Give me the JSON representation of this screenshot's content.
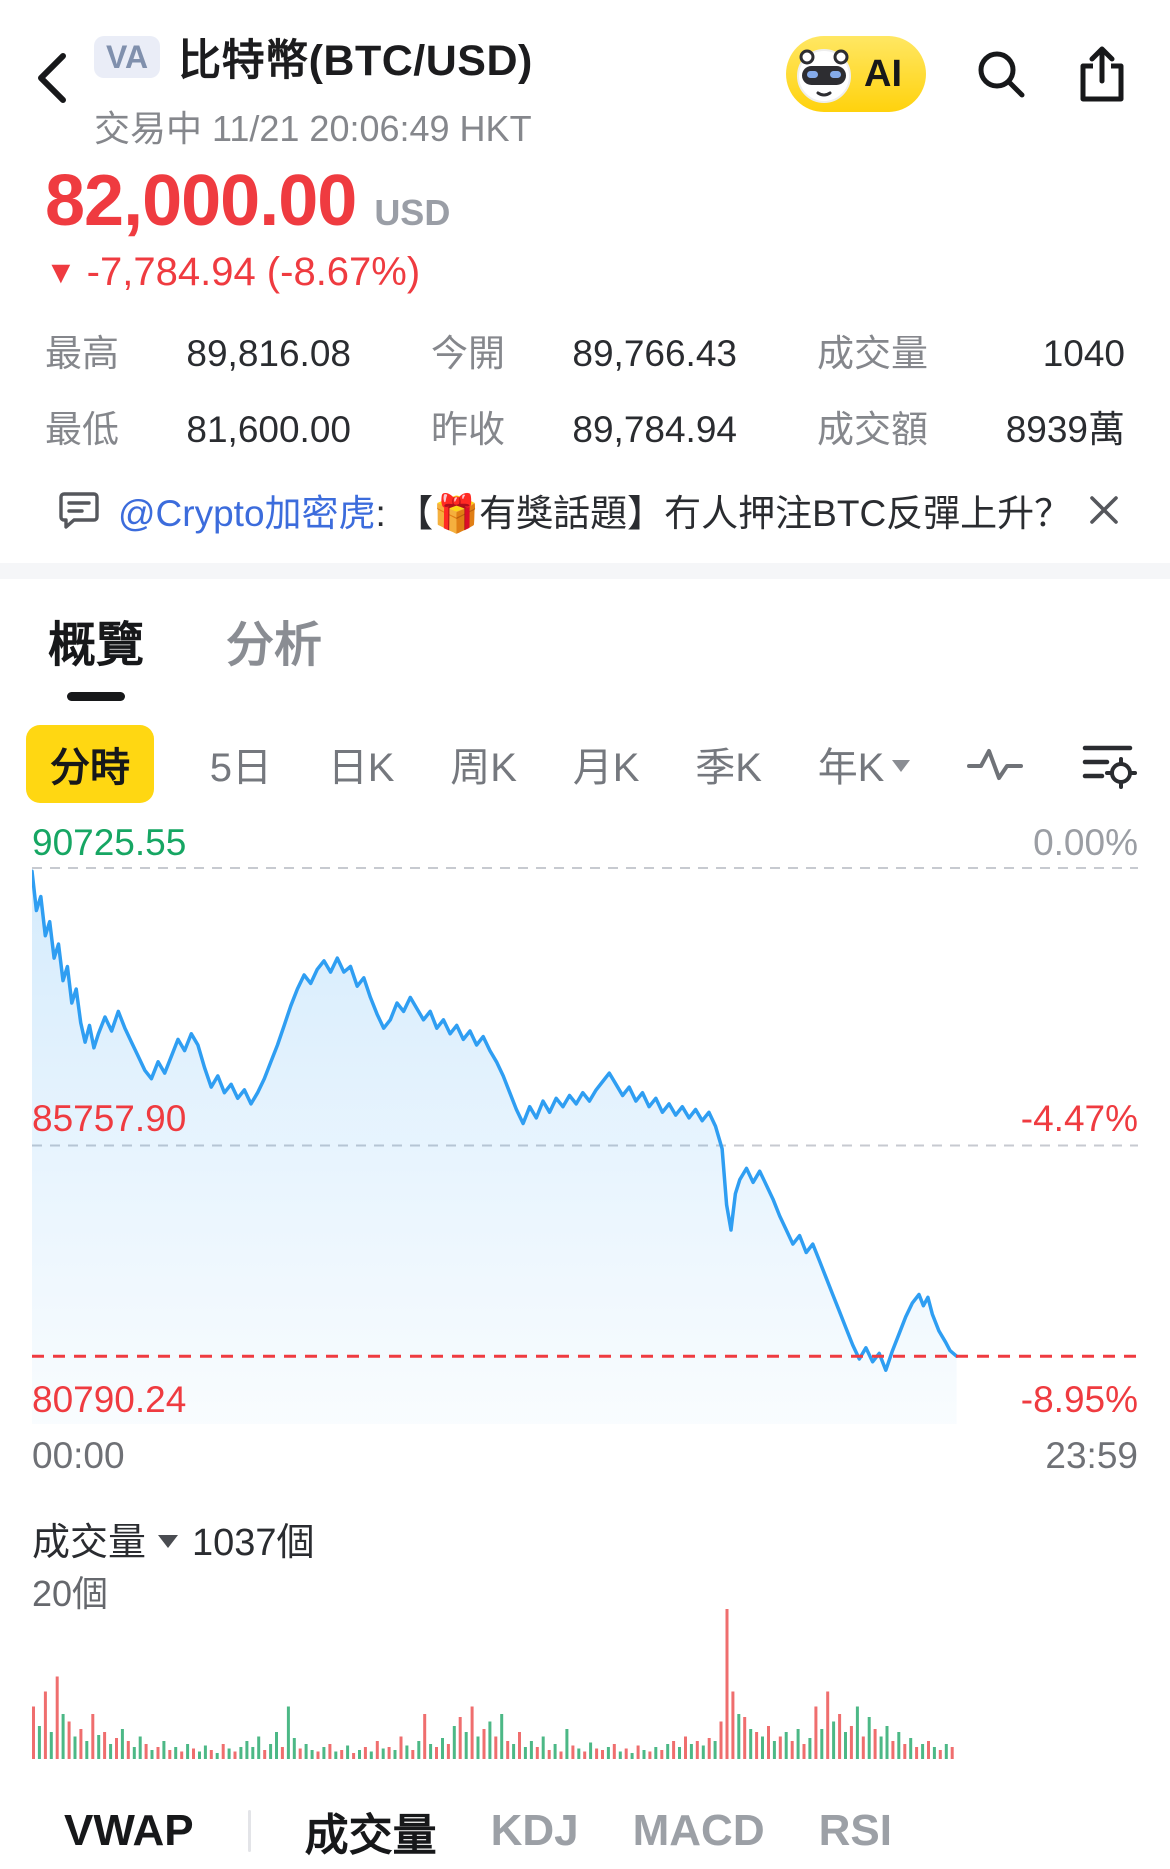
{
  "colors": {
    "down_red": "#ef3b40",
    "up_green": "#16a663",
    "line_blue": "#2f9ef2",
    "accent_yellow": "#ffd712",
    "link_blue": "#3c6cdc",
    "vol_red": "#ef6e6e",
    "vol_green": "#4cb886"
  },
  "header": {
    "badge": "VA",
    "title": "比特幣(BTC/USD)",
    "status": "交易中 11/21 20:06:49 HKT",
    "ai_label": "AI"
  },
  "quote": {
    "price": "82,000.00",
    "currency": "USD",
    "change_arrow": "▼",
    "change": "-7,784.94 (-8.67%)",
    "stats": [
      {
        "label": "最高",
        "value": "89,816.08"
      },
      {
        "label": "今開",
        "value": "89,766.43"
      },
      {
        "label": "成交量",
        "value": "1040"
      },
      {
        "label": "最低",
        "value": "81,600.00"
      },
      {
        "label": "昨收",
        "value": "89,784.94"
      },
      {
        "label": "成交額",
        "value": "8939萬"
      }
    ]
  },
  "banner": {
    "handle": "@Crypto加密虎",
    "message": ": 【🎁有獎話題】冇人押注BTC反彈上升？ ..."
  },
  "tabs": {
    "items": [
      {
        "label": "概覽",
        "active": true
      },
      {
        "label": "分析",
        "active": false
      }
    ]
  },
  "periods": {
    "active": "分時",
    "items": [
      "分時",
      "5日",
      "日K",
      "周K",
      "月K",
      "季K",
      "年K"
    ]
  },
  "chart_data": {
    "type": "line",
    "title": "BTC/USD intraday (分時)",
    "x_axis": {
      "start": "00:00",
      "end": "23:59"
    },
    "levels": {
      "top": {
        "price": 90725.55,
        "label": "90725.55",
        "pct": "0.00%"
      },
      "mid": {
        "price": 85757.9,
        "label": "85757.90",
        "pct": "-4.47%"
      },
      "bottom": {
        "price": 80790.24,
        "label": "80790.24",
        "pct": "-8.95%"
      },
      "last_price": 82000
    },
    "points": [
      [
        0.0,
        90650
      ],
      [
        0.004,
        89950
      ],
      [
        0.008,
        90200
      ],
      [
        0.012,
        89500
      ],
      [
        0.016,
        89750
      ],
      [
        0.02,
        89100
      ],
      [
        0.024,
        89350
      ],
      [
        0.028,
        88700
      ],
      [
        0.032,
        88950
      ],
      [
        0.036,
        88300
      ],
      [
        0.04,
        88550
      ],
      [
        0.044,
        87950
      ],
      [
        0.048,
        87600
      ],
      [
        0.052,
        87900
      ],
      [
        0.056,
        87500
      ],
      [
        0.06,
        87750
      ],
      [
        0.066,
        88050
      ],
      [
        0.072,
        87800
      ],
      [
        0.078,
        88150
      ],
      [
        0.084,
        87850
      ],
      [
        0.09,
        87600
      ],
      [
        0.096,
        87350
      ],
      [
        0.102,
        87100
      ],
      [
        0.108,
        86950
      ],
      [
        0.114,
        87250
      ],
      [
        0.12,
        87050
      ],
      [
        0.126,
        87350
      ],
      [
        0.132,
        87650
      ],
      [
        0.138,
        87450
      ],
      [
        0.144,
        87750
      ],
      [
        0.15,
        87550
      ],
      [
        0.156,
        87150
      ],
      [
        0.162,
        86800
      ],
      [
        0.168,
        87000
      ],
      [
        0.174,
        86700
      ],
      [
        0.18,
        86850
      ],
      [
        0.186,
        86600
      ],
      [
        0.192,
        86750
      ],
      [
        0.198,
        86500
      ],
      [
        0.204,
        86700
      ],
      [
        0.21,
        86950
      ],
      [
        0.216,
        87250
      ],
      [
        0.222,
        87550
      ],
      [
        0.228,
        87900
      ],
      [
        0.234,
        88250
      ],
      [
        0.24,
        88550
      ],
      [
        0.246,
        88800
      ],
      [
        0.252,
        88650
      ],
      [
        0.258,
        88900
      ],
      [
        0.264,
        89050
      ],
      [
        0.27,
        88850
      ],
      [
        0.276,
        89100
      ],
      [
        0.282,
        88850
      ],
      [
        0.288,
        88950
      ],
      [
        0.294,
        88600
      ],
      [
        0.3,
        88750
      ],
      [
        0.306,
        88400
      ],
      [
        0.312,
        88100
      ],
      [
        0.318,
        87850
      ],
      [
        0.324,
        88000
      ],
      [
        0.33,
        88300
      ],
      [
        0.336,
        88150
      ],
      [
        0.342,
        88400
      ],
      [
        0.348,
        88200
      ],
      [
        0.354,
        88000
      ],
      [
        0.36,
        88150
      ],
      [
        0.366,
        87850
      ],
      [
        0.372,
        88000
      ],
      [
        0.378,
        87750
      ],
      [
        0.384,
        87900
      ],
      [
        0.39,
        87650
      ],
      [
        0.396,
        87800
      ],
      [
        0.402,
        87550
      ],
      [
        0.408,
        87700
      ],
      [
        0.414,
        87450
      ],
      [
        0.42,
        87250
      ],
      [
        0.426,
        87000
      ],
      [
        0.432,
        86700
      ],
      [
        0.438,
        86400
      ],
      [
        0.444,
        86150
      ],
      [
        0.45,
        86450
      ],
      [
        0.456,
        86250
      ],
      [
        0.462,
        86550
      ],
      [
        0.468,
        86350
      ],
      [
        0.474,
        86600
      ],
      [
        0.48,
        86450
      ],
      [
        0.486,
        86650
      ],
      [
        0.492,
        86500
      ],
      [
        0.498,
        86700
      ],
      [
        0.504,
        86550
      ],
      [
        0.51,
        86750
      ],
      [
        0.516,
        86900
      ],
      [
        0.522,
        87050
      ],
      [
        0.528,
        86850
      ],
      [
        0.534,
        86650
      ],
      [
        0.54,
        86800
      ],
      [
        0.546,
        86550
      ],
      [
        0.552,
        86700
      ],
      [
        0.558,
        86450
      ],
      [
        0.564,
        86600
      ],
      [
        0.57,
        86350
      ],
      [
        0.576,
        86500
      ],
      [
        0.582,
        86300
      ],
      [
        0.588,
        86450
      ],
      [
        0.594,
        86250
      ],
      [
        0.6,
        86400
      ],
      [
        0.606,
        86200
      ],
      [
        0.612,
        86350
      ],
      [
        0.618,
        86100
      ],
      [
        0.624,
        85700
      ],
      [
        0.628,
        84700
      ],
      [
        0.632,
        84250
      ],
      [
        0.636,
        84900
      ],
      [
        0.64,
        85150
      ],
      [
        0.646,
        85350
      ],
      [
        0.652,
        85100
      ],
      [
        0.658,
        85300
      ],
      [
        0.664,
        85050
      ],
      [
        0.67,
        84800
      ],
      [
        0.676,
        84500
      ],
      [
        0.682,
        84250
      ],
      [
        0.688,
        84000
      ],
      [
        0.694,
        84150
      ],
      [
        0.7,
        83850
      ],
      [
        0.706,
        84000
      ],
      [
        0.712,
        83700
      ],
      [
        0.718,
        83400
      ],
      [
        0.724,
        83100
      ],
      [
        0.73,
        82800
      ],
      [
        0.736,
        82500
      ],
      [
        0.742,
        82200
      ],
      [
        0.748,
        81950
      ],
      [
        0.754,
        82150
      ],
      [
        0.76,
        81900
      ],
      [
        0.766,
        82050
      ],
      [
        0.772,
        81750
      ],
      [
        0.778,
        82100
      ],
      [
        0.784,
        82400
      ],
      [
        0.79,
        82700
      ],
      [
        0.796,
        82950
      ],
      [
        0.802,
        83100
      ],
      [
        0.806,
        82900
      ],
      [
        0.81,
        83050
      ],
      [
        0.814,
        82750
      ],
      [
        0.82,
        82450
      ],
      [
        0.826,
        82250
      ],
      [
        0.83,
        82100
      ],
      [
        0.836,
        82000
      ]
    ],
    "volume": {
      "title": "成交量",
      "count": "1037個",
      "axis_max": "20個",
      "bars": [
        -0.35,
        0.22,
        -0.45,
        0.18,
        -0.55,
        0.3,
        -0.25,
        0.15,
        -0.2,
        0.12,
        -0.3,
        0.16,
        -0.18,
        0.1,
        -0.14,
        0.2,
        -0.12,
        0.08,
        0.15,
        -0.1,
        0.06,
        -0.08,
        0.12,
        -0.06,
        0.08,
        -0.05,
        0.1,
        -0.07,
        0.05,
        0.09,
        -0.06,
        0.04,
        -0.1,
        0.07,
        -0.05,
        0.08,
        0.12,
        0.08,
        0.15,
        -0.06,
        0.1,
        0.18,
        -0.08,
        0.35,
        0.14,
        -0.07,
        0.1,
        0.06,
        -0.05,
        0.08,
        -0.1,
        0.05,
        -0.06,
        0.09,
        -0.04,
        0.06,
        -0.08,
        0.05,
        -0.12,
        0.07,
        -0.08,
        0.06,
        -0.15,
        0.09,
        -0.06,
        0.12,
        -0.3,
        0.1,
        -0.08,
        0.14,
        -0.1,
        0.22,
        -0.28,
        0.18,
        -0.35,
        0.15,
        -0.2,
        0.25,
        -0.15,
        0.3,
        -0.12,
        0.1,
        -0.18,
        0.08,
        0.12,
        -0.08,
        0.15,
        -0.06,
        0.1,
        -0.05,
        0.2,
        -0.09,
        0.07,
        -0.05,
        0.11,
        -0.07,
        -0.06,
        0.08,
        -0.1,
        0.05,
        -0.07,
        0.04,
        -0.09,
        0.06,
        -0.05,
        0.08,
        -0.06,
        0.1,
        -0.12,
        0.08,
        -0.15,
        0.1,
        -0.12,
        0.09,
        -0.14,
        0.12,
        -0.25,
        -1.0,
        -0.45,
        0.3,
        -0.28,
        0.2,
        -0.18,
        0.15,
        -0.22,
        0.12,
        -0.15,
        0.18,
        -0.12,
        0.2,
        -0.1,
        0.14,
        -0.35,
        0.2,
        -0.45,
        0.25,
        -0.3,
        0.18,
        -0.22,
        0.35,
        -0.15,
        0.28,
        -0.2,
        0.15,
        0.22,
        -0.12,
        0.18,
        -0.1,
        0.14,
        -0.08,
        0.1,
        -0.12,
        0.08,
        -0.06,
        0.1,
        -0.08
      ]
    }
  },
  "indicators": {
    "items": [
      {
        "label": "VWAP",
        "active": true
      },
      {
        "label": "成交量",
        "active": true
      },
      {
        "label": "KDJ",
        "active": false
      },
      {
        "label": "MACD",
        "active": false
      },
      {
        "label": "RSI",
        "active": false
      }
    ]
  }
}
